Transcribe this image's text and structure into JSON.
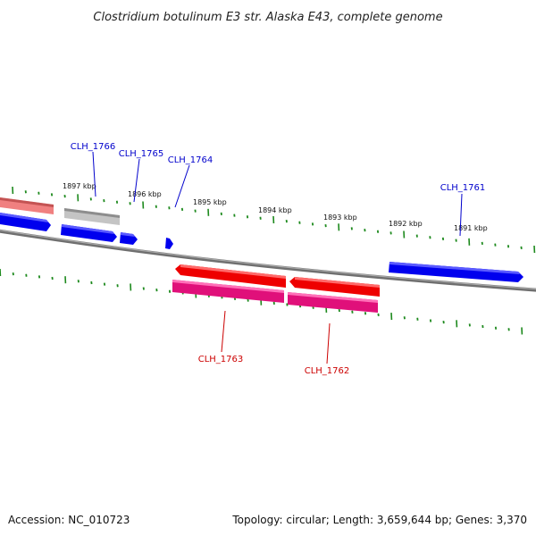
{
  "title": "Clostridium botulinum E3 str. Alaska E43, complete genome",
  "footer": {
    "accession": "Accession: NC_010723",
    "topology": "Topology: circular; Length: 3,659,644 bp; Genes: 3,370"
  },
  "colors": {
    "backbone": "#7a7a7a",
    "ticks": "#1e8a1e",
    "forward_gene": "#0000ee",
    "reverse_gene": "#ee0000",
    "reverse_cds": "#e0107a",
    "faded_forward": "#c0c0c0",
    "faded_reverse": "#f08080",
    "forward_label": "#0000cc",
    "reverse_label": "#cc0000"
  },
  "ruler": {
    "unit": "kbp",
    "labels": [
      "1897 kbp",
      "1896 kbp",
      "1895 kbp",
      "1894 kbp",
      "1893 kbp",
      "1892 kbp",
      "1891 kbp"
    ]
  },
  "gene_labels": {
    "forward": [
      "CLH_1766",
      "CLH_1765",
      "CLH_1764",
      "CLH_1761"
    ],
    "reverse": [
      "CLH_1763",
      "CLH_1762"
    ]
  }
}
